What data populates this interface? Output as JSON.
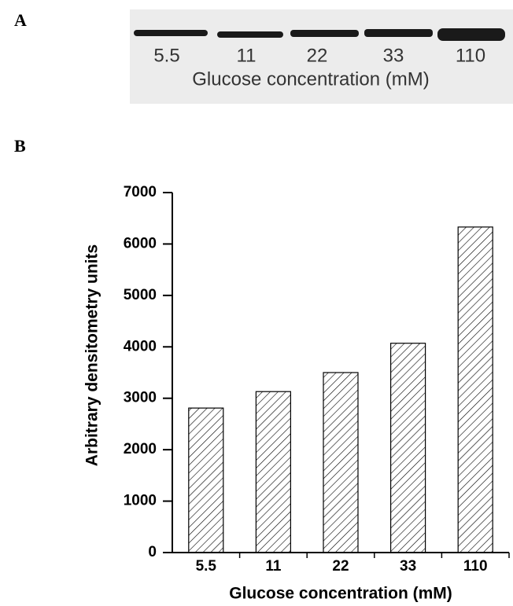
{
  "blot": {
    "panel_label": "A",
    "lanes": [
      "5.5",
      "11",
      "22",
      "33",
      "110"
    ],
    "xlabel": "Glucose concentration (mM)"
  },
  "chart_data": {
    "type": "bar",
    "panel_label": "B",
    "categories": [
      "5.5",
      "11",
      "22",
      "33",
      "110"
    ],
    "values": [
      2810,
      3130,
      3500,
      4070,
      6330
    ],
    "color": "#000000",
    "ylim": [
      0,
      7000
    ],
    "yticks": [
      0,
      1000,
      2000,
      3000,
      4000,
      5000,
      6000,
      7000
    ],
    "xlabel": "Glucose concentration (mM)",
    "ylabel": "Arbitrary densitometry units"
  }
}
